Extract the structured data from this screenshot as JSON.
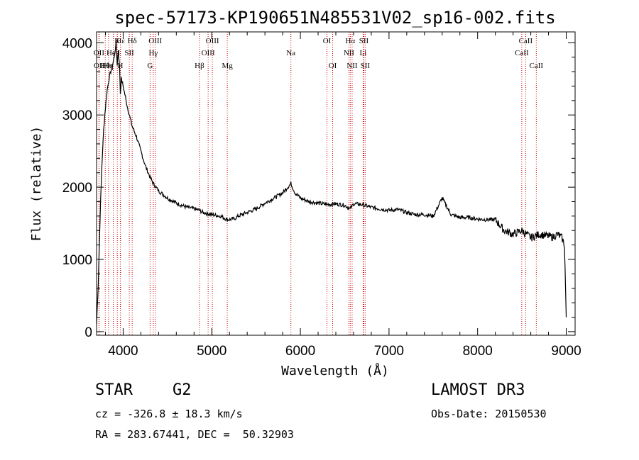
{
  "chart_data": {
    "type": "line",
    "title": "spec-57173-KP190651N485531V02_sp16-002.fits",
    "xlabel": "Wavelength (Å)",
    "ylabel": "Flux (relative)",
    "xlim": [
      3700,
      9100
    ],
    "ylim": [
      -50,
      4150
    ],
    "xticks": [
      4000,
      5000,
      6000,
      7000,
      8000,
      9000
    ],
    "yticks": [
      0,
      1000,
      2000,
      3000,
      4000
    ],
    "grid": false,
    "series": [
      {
        "name": "flux",
        "x": [
          3700,
          3720,
          3740,
          3760,
          3780,
          3800,
          3820,
          3840,
          3860,
          3880,
          3900,
          3920,
          3933,
          3945,
          3960,
          3968,
          3980,
          4000,
          4050,
          4100,
          4150,
          4200,
          4250,
          4300,
          4340,
          4400,
          4500,
          4600,
          4700,
          4800,
          4861,
          4900,
          5000,
          5100,
          5175,
          5250,
          5300,
          5400,
          5500,
          5600,
          5700,
          5800,
          5893,
          5940,
          6000,
          6100,
          6200,
          6300,
          6400,
          6500,
          6563,
          6600,
          6700,
          6800,
          6900,
          7000,
          7100,
          7200,
          7300,
          7400,
          7500,
          7600,
          7700,
          7800,
          7900,
          8000,
          8100,
          8200,
          8300,
          8400,
          8500,
          8600,
          8700,
          8800,
          8850,
          8900,
          8950,
          8980,
          9000
        ],
        "y": [
          100,
          700,
          1600,
          2300,
          2800,
          3100,
          3350,
          3500,
          3600,
          3700,
          3800,
          4000,
          3700,
          3900,
          3650,
          3300,
          3500,
          3400,
          3100,
          2850,
          2700,
          2500,
          2300,
          2150,
          2050,
          1950,
          1850,
          1780,
          1730,
          1700,
          1680,
          1650,
          1620,
          1600,
          1550,
          1560,
          1600,
          1650,
          1700,
          1780,
          1850,
          1920,
          2050,
          1920,
          1850,
          1800,
          1780,
          1760,
          1770,
          1750,
          1700,
          1770,
          1760,
          1720,
          1700,
          1680,
          1690,
          1650,
          1620,
          1620,
          1600,
          1850,
          1620,
          1580,
          1580,
          1560,
          1550,
          1550,
          1400,
          1350,
          1400,
          1300,
          1350,
          1320,
          1310,
          1350,
          1300,
          1200,
          200
        ]
      }
    ],
    "lines": [
      {
        "label": "Hε",
        "wl": 3970,
        "row": 0
      },
      {
        "label": "OII",
        "wl": 3727,
        "row": 1
      },
      {
        "label": "OII",
        "wl": 3729,
        "row": 2
      },
      {
        "label": "Hθ",
        "wl": 3798,
        "row": 2
      },
      {
        "label": "Hη",
        "wl": 3835,
        "row": 2
      },
      {
        "label": "He I",
        "wl": 3889,
        "row": 1
      },
      {
        "label": "SII",
        "wl": 4069,
        "row": 1
      },
      {
        "label": "K",
        "wl": 3934,
        "row": 0
      },
      {
        "label": "H",
        "wl": 3968,
        "row": 2
      },
      {
        "label": "Hδ",
        "wl": 4102,
        "row": 0
      },
      {
        "label": "OIII",
        "wl": 4363,
        "row": 0
      },
      {
        "label": "Hγ",
        "wl": 4340,
        "row": 1
      },
      {
        "label": "G",
        "wl": 4304,
        "row": 2
      },
      {
        "label": "OIII",
        "wl": 5007,
        "row": 0
      },
      {
        "label": "OIII",
        "wl": 4959,
        "row": 1
      },
      {
        "label": "Hβ",
        "wl": 4861,
        "row": 2
      },
      {
        "label": "Mg",
        "wl": 5175,
        "row": 2
      },
      {
        "label": "Na",
        "wl": 5893,
        "row": 1
      },
      {
        "label": "OI",
        "wl": 6300,
        "row": 0
      },
      {
        "label": "OI",
        "wl": 6364,
        "row": 2
      },
      {
        "label": "Hα",
        "wl": 6563,
        "row": 0
      },
      {
        "label": "SII",
        "wl": 6716,
        "row": 0
      },
      {
        "label": "NII",
        "wl": 6548,
        "row": 1
      },
      {
        "label": "Li",
        "wl": 6708,
        "row": 1
      },
      {
        "label": "NII",
        "wl": 6584,
        "row": 2
      },
      {
        "label": "SII",
        "wl": 6731,
        "row": 2
      },
      {
        "label": "CaII",
        "wl": 8542,
        "row": 0
      },
      {
        "label": "CaII",
        "wl": 8498,
        "row": 1
      },
      {
        "label": "CaII",
        "wl": 8662,
        "row": 2
      }
    ],
    "line_color": "#cc0000"
  },
  "info": {
    "class": "STAR",
    "subclass": "G2",
    "survey": "LAMOST DR3",
    "cz": "cz = -326.8 ± 18.3 km/s",
    "obs_date": "Obs-Date: 20150530",
    "coords": "RA = 283.67441, DEC =  50.32903"
  }
}
